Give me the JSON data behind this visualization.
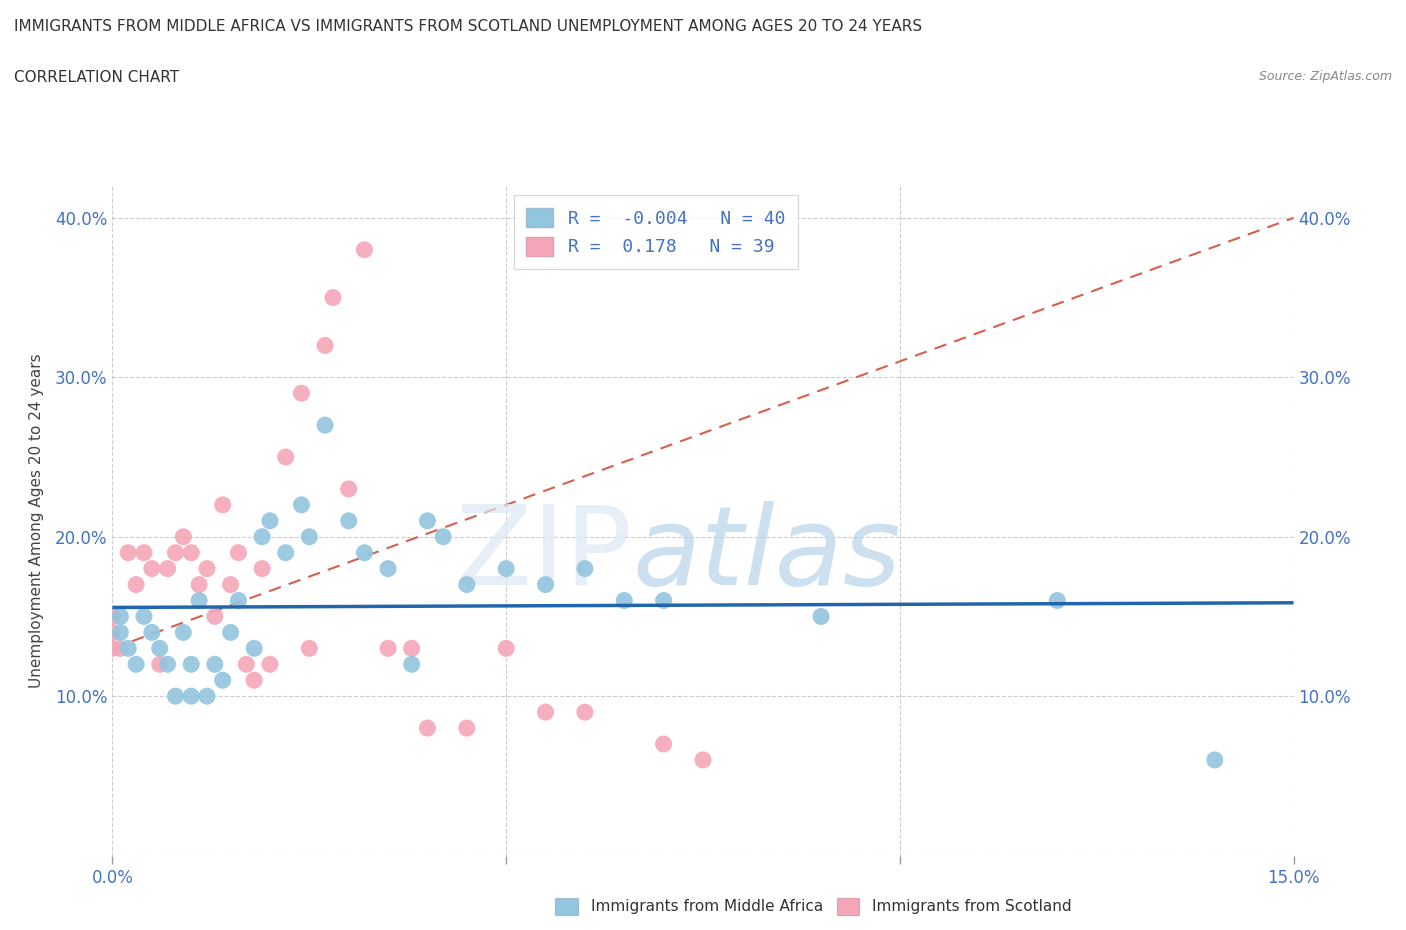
{
  "title_line1": "IMMIGRANTS FROM MIDDLE AFRICA VS IMMIGRANTS FROM SCOTLAND UNEMPLOYMENT AMONG AGES 20 TO 24 YEARS",
  "title_line2": "CORRELATION CHART",
  "source": "Source: ZipAtlas.com",
  "ylabel": "Unemployment Among Ages 20 to 24 years",
  "xlim": [
    0.0,
    0.15
  ],
  "ylim": [
    0.0,
    0.42
  ],
  "watermark_zip": "ZIP",
  "watermark_atlas": "atlas",
  "blue_R": -0.004,
  "blue_N": 40,
  "pink_R": 0.178,
  "pink_N": 39,
  "blue_color": "#92c5de",
  "pink_color": "#f4a6b8",
  "blue_line_color": "#2166ac",
  "pink_line_color": "#d6604d",
  "tick_color": "#4472c4",
  "grid_color": "#c8c8c8",
  "blue_scatter_x": [
    0.001,
    0.001,
    0.002,
    0.003,
    0.004,
    0.005,
    0.006,
    0.007,
    0.008,
    0.009,
    0.01,
    0.01,
    0.011,
    0.012,
    0.013,
    0.014,
    0.015,
    0.016,
    0.018,
    0.019,
    0.02,
    0.022,
    0.024,
    0.025,
    0.027,
    0.03,
    0.032,
    0.035,
    0.038,
    0.04,
    0.042,
    0.045,
    0.05,
    0.055,
    0.06,
    0.065,
    0.07,
    0.09,
    0.12,
    0.14
  ],
  "blue_scatter_y": [
    0.14,
    0.15,
    0.13,
    0.12,
    0.15,
    0.14,
    0.13,
    0.12,
    0.1,
    0.14,
    0.12,
    0.1,
    0.16,
    0.1,
    0.12,
    0.11,
    0.14,
    0.16,
    0.13,
    0.2,
    0.21,
    0.19,
    0.22,
    0.2,
    0.27,
    0.21,
    0.19,
    0.18,
    0.12,
    0.21,
    0.2,
    0.17,
    0.18,
    0.17,
    0.18,
    0.16,
    0.16,
    0.15,
    0.16,
    0.06
  ],
  "pink_scatter_x": [
    0.0,
    0.0,
    0.0,
    0.001,
    0.002,
    0.003,
    0.004,
    0.005,
    0.006,
    0.007,
    0.008,
    0.009,
    0.01,
    0.011,
    0.012,
    0.013,
    0.014,
    0.015,
    0.016,
    0.017,
    0.018,
    0.019,
    0.02,
    0.022,
    0.024,
    0.025,
    0.027,
    0.028,
    0.03,
    0.032,
    0.035,
    0.038,
    0.04,
    0.045,
    0.05,
    0.055,
    0.06,
    0.07,
    0.075
  ],
  "pink_scatter_y": [
    0.13,
    0.15,
    0.14,
    0.13,
    0.19,
    0.17,
    0.19,
    0.18,
    0.12,
    0.18,
    0.19,
    0.2,
    0.19,
    0.17,
    0.18,
    0.15,
    0.22,
    0.17,
    0.19,
    0.12,
    0.11,
    0.18,
    0.12,
    0.25,
    0.29,
    0.13,
    0.32,
    0.35,
    0.23,
    0.38,
    0.13,
    0.13,
    0.08,
    0.08,
    0.13,
    0.09,
    0.09,
    0.07,
    0.06
  ],
  "legend_label_blue": "Immigrants from Middle Africa",
  "legend_label_pink": "Immigrants from Scotland"
}
